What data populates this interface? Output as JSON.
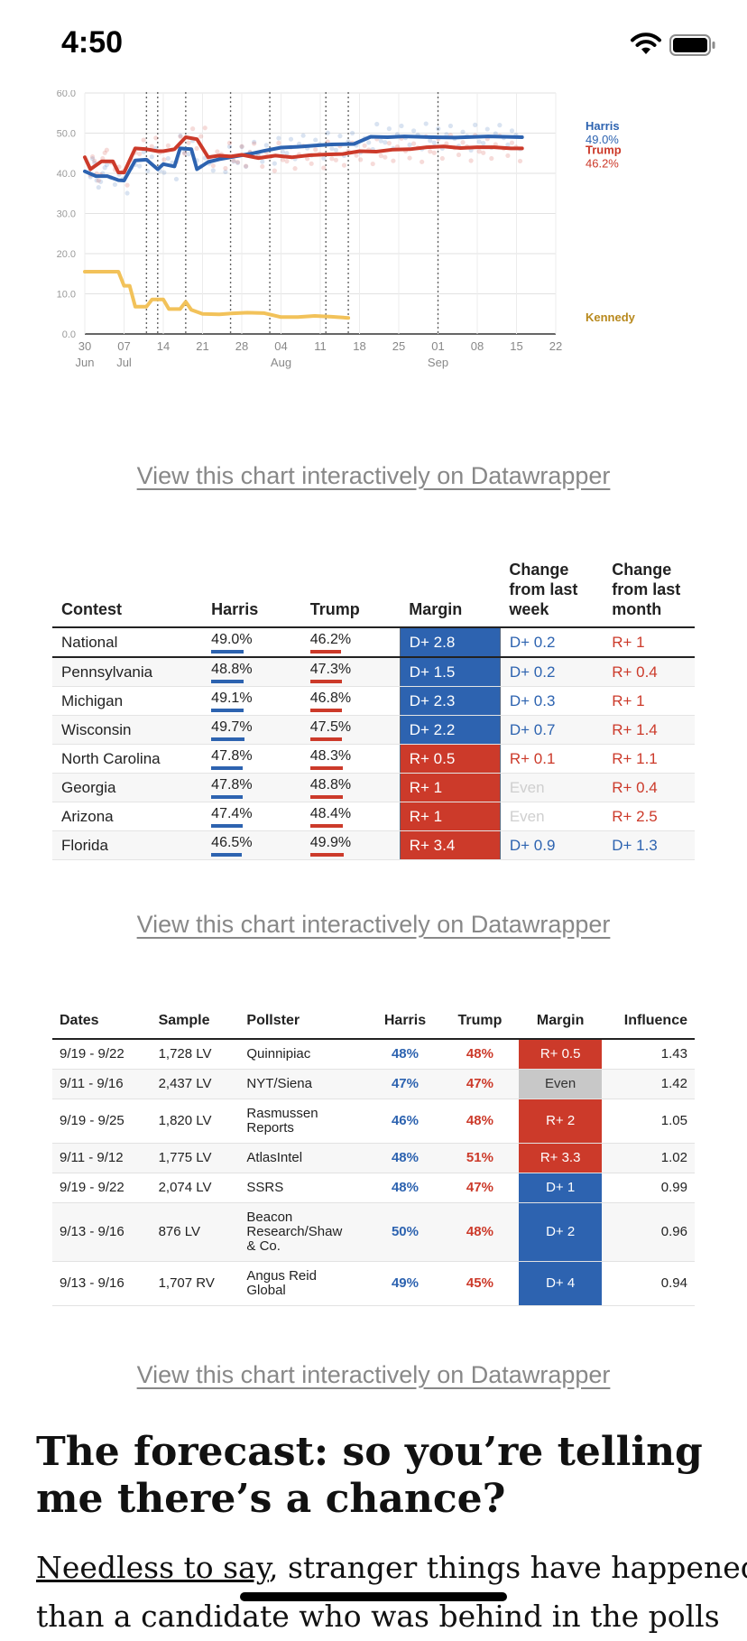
{
  "status_bar": {
    "time": "4:50"
  },
  "chart_data": {
    "type": "line",
    "ylim": [
      0,
      60
    ],
    "yticks": [
      "0.0",
      "10.0",
      "20.0",
      "30.0",
      "40.0",
      "50.0",
      "60.0"
    ],
    "xticks": [
      {
        "day": "30",
        "month": "Jun"
      },
      {
        "day": "07",
        "month": "Jul"
      },
      {
        "day": "14",
        "month": ""
      },
      {
        "day": "21",
        "month": ""
      },
      {
        "day": "28",
        "month": ""
      },
      {
        "day": "04",
        "month": "Aug"
      },
      {
        "day": "11",
        "month": ""
      },
      {
        "day": "18",
        "month": ""
      },
      {
        "day": "25",
        "month": ""
      },
      {
        "day": "01",
        "month": "Sep"
      },
      {
        "day": "08",
        "month": ""
      },
      {
        "day": "15",
        "month": ""
      },
      {
        "day": "22",
        "month": ""
      }
    ],
    "series": [
      {
        "name": "Harris",
        "label": "49.0%",
        "color": "#2d63b0",
        "points": [
          [
            0,
            40.5
          ],
          [
            2,
            39.3
          ],
          [
            4,
            39.3
          ],
          [
            6,
            38.3
          ],
          [
            7,
            38.2
          ],
          [
            9,
            43.2
          ],
          [
            11,
            43.4
          ],
          [
            13,
            41
          ],
          [
            14,
            42.3
          ],
          [
            16,
            41.7
          ],
          [
            17,
            46.2
          ],
          [
            19,
            46
          ],
          [
            20,
            41
          ],
          [
            22,
            42.8
          ],
          [
            24,
            43.5
          ],
          [
            26,
            44
          ],
          [
            28,
            44.5
          ],
          [
            30,
            45
          ],
          [
            32,
            45.6
          ],
          [
            35,
            46.4
          ],
          [
            38,
            46.6
          ],
          [
            41,
            46.9
          ],
          [
            44,
            47.2
          ],
          [
            48,
            47.3
          ],
          [
            51,
            49.1
          ],
          [
            54,
            49
          ],
          [
            57,
            49.2
          ],
          [
            62,
            49
          ],
          [
            66,
            48.9
          ],
          [
            72,
            49.2
          ],
          [
            78,
            49
          ]
        ]
      },
      {
        "name": "Trump",
        "label": "46.2%",
        "color": "#cc3a2a",
        "points": [
          [
            0,
            44
          ],
          [
            1,
            41
          ],
          [
            3,
            43
          ],
          [
            5,
            43
          ],
          [
            6,
            40.2
          ],
          [
            7,
            40.2
          ],
          [
            9,
            46.2
          ],
          [
            11,
            46
          ],
          [
            13,
            45.5
          ],
          [
            14,
            45.5
          ],
          [
            16,
            46
          ],
          [
            18,
            49
          ],
          [
            20,
            48.5
          ],
          [
            22,
            44
          ],
          [
            24,
            44.4
          ],
          [
            26,
            44.2
          ],
          [
            28,
            44.6
          ],
          [
            31,
            43.8
          ],
          [
            34,
            44.4
          ],
          [
            37,
            44
          ],
          [
            40,
            44.5
          ],
          [
            43,
            44.7
          ],
          [
            46,
            44.8
          ],
          [
            49,
            45.5
          ],
          [
            52,
            45.4
          ],
          [
            55,
            45.9
          ],
          [
            58,
            46
          ],
          [
            61,
            46.5
          ],
          [
            64,
            46.7
          ],
          [
            67,
            46.3
          ],
          [
            70,
            46.5
          ],
          [
            73,
            46.5
          ],
          [
            76,
            46.2
          ],
          [
            78,
            46.2
          ]
        ]
      },
      {
        "name": "Kennedy",
        "label": "",
        "color": "#f2c25a",
        "points": [
          [
            0,
            15.5
          ],
          [
            6,
            15.5
          ],
          [
            7,
            12
          ],
          [
            8,
            12
          ],
          [
            9,
            6.8
          ],
          [
            11,
            6.8
          ],
          [
            12,
            8.6
          ],
          [
            14,
            8.6
          ],
          [
            15,
            6.2
          ],
          [
            17,
            6.2
          ],
          [
            18,
            8
          ],
          [
            19,
            6
          ],
          [
            21,
            5
          ],
          [
            24,
            4.9
          ],
          [
            26,
            5.1
          ],
          [
            29,
            5.3
          ],
          [
            32,
            5.2
          ],
          [
            35,
            4.2
          ],
          [
            38,
            4.2
          ],
          [
            41,
            4.5
          ],
          [
            44,
            4.3
          ],
          [
            47,
            4
          ]
        ]
      }
    ],
    "event_lines_days": [
      11,
      13,
      18,
      26,
      33,
      43,
      47,
      63
    ]
  },
  "links": {
    "dw1": "View this chart interactively on Datawrapper",
    "dw2": "View this chart interactively on Datawrapper",
    "dw3": "View this chart interactively on Datawrapper"
  },
  "contest_table": {
    "headers": [
      "Contest",
      "Harris",
      "Trump",
      "Margin",
      "Change\nfrom last\nweek",
      "Change\nfrom last\nmonth"
    ],
    "rows": [
      {
        "contest": "National",
        "harris": "49.0%",
        "trump": "46.2%",
        "margin": "D+ 2.8",
        "party": "D",
        "week": "D+ 0.2",
        "week_party": "D",
        "month": "R+ 1",
        "month_party": "R"
      },
      {
        "contest": "Pennsylvania",
        "harris": "48.8%",
        "trump": "47.3%",
        "margin": "D+ 1.5",
        "party": "D",
        "week": "D+ 0.2",
        "week_party": "D",
        "month": "R+ 0.4",
        "month_party": "R"
      },
      {
        "contest": "Michigan",
        "harris": "49.1%",
        "trump": "46.8%",
        "margin": "D+ 2.3",
        "party": "D",
        "week": "D+ 0.3",
        "week_party": "D",
        "month": "R+ 1",
        "month_party": "R"
      },
      {
        "contest": "Wisconsin",
        "harris": "49.7%",
        "trump": "47.5%",
        "margin": "D+ 2.2",
        "party": "D",
        "week": "D+ 0.7",
        "week_party": "D",
        "month": "R+ 1.4",
        "month_party": "R"
      },
      {
        "contest": "North Carolina",
        "harris": "47.8%",
        "trump": "48.3%",
        "margin": "R+ 0.5",
        "party": "R",
        "week": "R+ 0.1",
        "week_party": "R",
        "month": "R+ 1.1",
        "month_party": "R"
      },
      {
        "contest": "Georgia",
        "harris": "47.8%",
        "trump": "48.8%",
        "margin": "R+ 1",
        "party": "R",
        "week": "Even",
        "week_party": "E",
        "month": "R+ 0.4",
        "month_party": "R"
      },
      {
        "contest": "Arizona",
        "harris": "47.4%",
        "trump": "48.4%",
        "margin": "R+ 1",
        "party": "R",
        "week": "Even",
        "week_party": "E",
        "month": "R+ 2.5",
        "month_party": "R"
      },
      {
        "contest": "Florida",
        "harris": "46.5%",
        "trump": "49.9%",
        "margin": "R+ 3.4",
        "party": "R",
        "week": "D+ 0.9",
        "week_party": "D",
        "month": "D+ 1.3",
        "month_party": "D"
      }
    ]
  },
  "polls_table": {
    "headers": [
      "Dates",
      "Sample",
      "Pollster",
      "Harris",
      "Trump",
      "Margin",
      "Influence"
    ],
    "rows": [
      {
        "dates": "9/19 - 9/22",
        "sample": "1,728 LV",
        "pollster": "Quinnipiac",
        "harris": "48%",
        "trump": "48%",
        "margin": "R+ 0.5",
        "party": "R",
        "influence": "1.43"
      },
      {
        "dates": "9/11 - 9/16",
        "sample": "2,437 LV",
        "pollster": "NYT/Siena",
        "harris": "47%",
        "trump": "47%",
        "margin": "Even",
        "party": "E",
        "influence": "1.42"
      },
      {
        "dates": "9/19 - 9/25",
        "sample": "1,820 LV",
        "pollster": "Rasmussen\nReports",
        "harris": "46%",
        "trump": "48%",
        "margin": "R+ 2",
        "party": "R",
        "influence": "1.05"
      },
      {
        "dates": "9/11 - 9/12",
        "sample": "1,775 LV",
        "pollster": "AtlasIntel",
        "harris": "48%",
        "trump": "51%",
        "margin": "R+ 3.3",
        "party": "R",
        "influence": "1.02"
      },
      {
        "dates": "9/19 - 9/22",
        "sample": "2,074 LV",
        "pollster": "SSRS",
        "harris": "48%",
        "trump": "47%",
        "margin": "D+ 1",
        "party": "D",
        "influence": "0.99"
      },
      {
        "dates": "9/13 - 9/16",
        "sample": "876 LV",
        "pollster": "Beacon\nResearch/Shaw\n& Co.",
        "harris": "50%",
        "trump": "48%",
        "margin": "D+ 2",
        "party": "D",
        "influence": "0.96"
      },
      {
        "dates": "9/13 - 9/16",
        "sample": "1,707 RV",
        "pollster": "Angus Reid\nGlobal",
        "harris": "49%",
        "trump": "45%",
        "margin": "D+ 4",
        "party": "D",
        "influence": "0.94"
      }
    ]
  },
  "article": {
    "heading": "The forecast: so you’re telling me there’s a chance?",
    "link_text": "Needless to say",
    "line1_rest": ", stranger things have happened",
    "line2": "than a candidate who was behind in the polls"
  },
  "colors": {
    "dem": "#2d63b0",
    "rep": "#cc3a2a",
    "even": "#c8c8c8",
    "kennedy": "#f2c25a"
  }
}
